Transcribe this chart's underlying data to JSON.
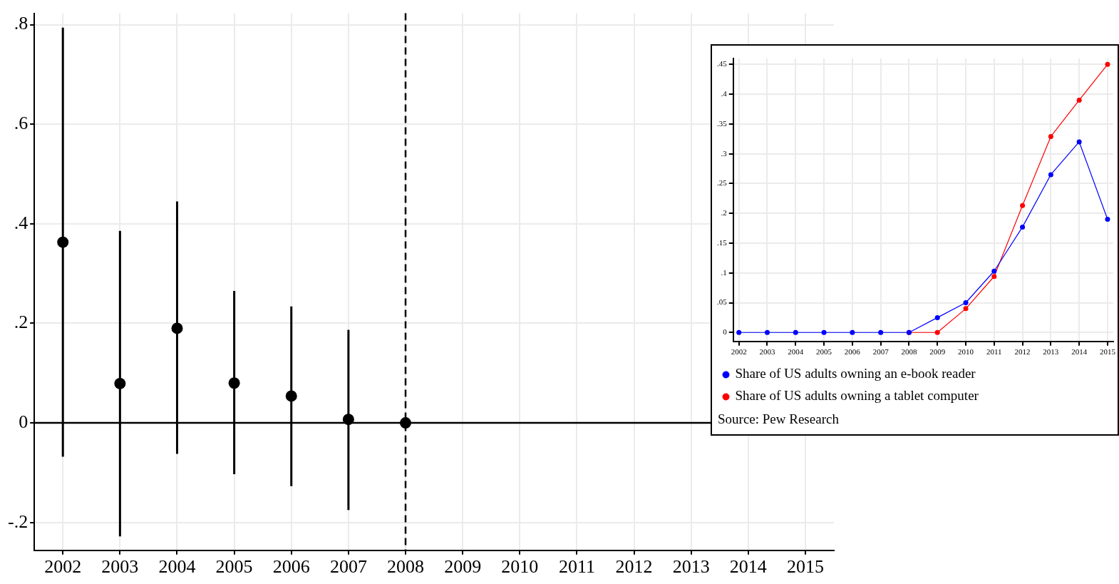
{
  "chart_data": [
    {
      "type": "scatter",
      "x": [
        2002,
        2003,
        2004,
        2005,
        2006,
        2007,
        2008
      ],
      "xlim": [
        2001.5,
        2015.5
      ],
      "xticks": [
        2002,
        2003,
        2004,
        2005,
        2006,
        2007,
        2008,
        2009,
        2010,
        2011,
        2012,
        2013,
        2014,
        2015
      ],
      "ylim": [
        -0.256,
        0.823
      ],
      "yticks": [
        {
          "value": -0.2,
          "label": "-.2"
        },
        0,
        {
          "value": 0.2,
          "label": ".2"
        },
        {
          "value": 0.4,
          "label": ".4"
        },
        {
          "value": 0.6,
          "label": ".6"
        },
        {
          "value": 0.8,
          "label": ".8"
        }
      ],
      "grid": true,
      "legend": false,
      "marker": "circle",
      "series": [
        {
          "color": "#000000",
          "values": [
            0.363,
            0.079,
            0.19,
            0.08,
            0.054,
            0.007,
            0
          ],
          "errors": [
            [
              -0.068,
              0.794
            ],
            [
              -0.228,
              0.386
            ],
            [
              -0.062,
              0.445
            ],
            [
              -0.103,
              0.265
            ],
            [
              -0.127,
              0.234
            ],
            [
              -0.175,
              0.187
            ],
            null
          ]
        }
      ],
      "ref_lines": [
        {
          "axis": "x",
          "value": 2008,
          "line_style": "dashed",
          "color": "#000000"
        },
        {
          "axis": "y",
          "value": 0,
          "line_style": "solid",
          "color": "#000000"
        }
      ]
    },
    {
      "type": "line",
      "x": [
        2002,
        2003,
        2004,
        2005,
        2006,
        2007,
        2008,
        2009,
        2010,
        2011,
        2012,
        2013,
        2014,
        2015
      ],
      "xlim": [
        2001.8,
        2015.2
      ],
      "xticks": [
        2002,
        2003,
        2004,
        2005,
        2006,
        2007,
        2008,
        2009,
        2010,
        2011,
        2012,
        2013,
        2014,
        2015
      ],
      "ylim": [
        -0.015,
        0.46
      ],
      "yticks": [
        0,
        {
          "value": 0.05,
          "label": ".05"
        },
        {
          "value": 0.1,
          "label": ".1"
        },
        {
          "value": 0.15,
          "label": ".15"
        },
        {
          "value": 0.2,
          "label": ".2"
        },
        {
          "value": 0.25,
          "label": ".25"
        },
        {
          "value": 0.3,
          "label": ".3"
        },
        {
          "value": 0.35,
          "label": ".35"
        },
        {
          "value": 0.4,
          "label": ".4"
        },
        {
          "value": 0.45,
          "label": ".45"
        }
      ],
      "grid": true,
      "legend": "bottom",
      "marker": "circle",
      "line_style": "solid",
      "series": [
        {
          "name": "Share of US adults owning an e-book reader",
          "color": "#0000ff",
          "values": [
            0,
            0,
            0,
            0,
            0,
            0,
            0,
            0.025,
            0.05,
            0.103,
            0.177,
            0.265,
            0.32,
            0.19
          ]
        },
        {
          "name": "Share of US adults owning a tablet computer",
          "color": "#ff0000",
          "values": [
            null,
            null,
            null,
            null,
            null,
            null,
            0,
            0,
            0.04,
            0.094,
            0.213,
            0.329,
            0.39,
            0.45
          ]
        }
      ],
      "annotations": [
        "Source: Pew Research"
      ]
    }
  ]
}
